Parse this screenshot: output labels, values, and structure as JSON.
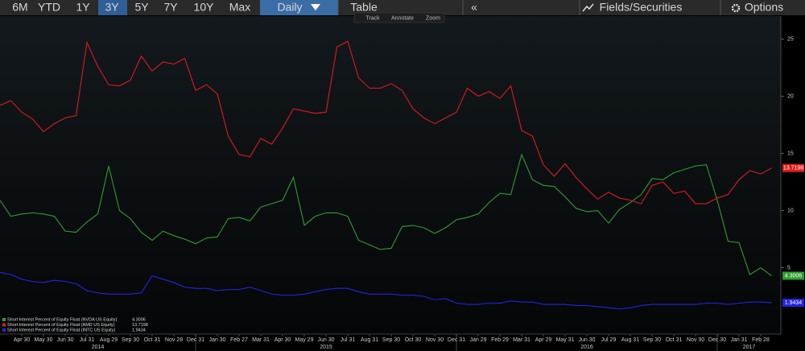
{
  "toolbar": {
    "ranges": [
      "6M",
      "YTD",
      "1Y",
      "3Y",
      "5Y",
      "7Y",
      "10Y",
      "Max"
    ],
    "frequency": "Daily",
    "table": "Table",
    "collapse": "«",
    "fields": "Fields/Securities",
    "options": "Options",
    "tools": [
      "Track",
      "Annotate",
      "Zoom"
    ]
  },
  "chart_data": {
    "type": "line",
    "categories": [
      null,
      null,
      "Apr 30",
      null,
      "May 30",
      null,
      "Jun 30",
      null,
      "Jul 31",
      null,
      "Aug 29",
      null,
      "Sep 30",
      null,
      "Oct 31",
      null,
      "Nov 28",
      null,
      "Dec 31",
      null,
      "Jan 30",
      null,
      "Feb 27",
      null,
      "Mar 31",
      null,
      "Apr 30",
      null,
      "May 29",
      null,
      "Jun 30",
      null,
      "Jul 31",
      null,
      "Aug 31",
      null,
      "Sep 30",
      null,
      "Oct 30",
      null,
      "Nov 30",
      null,
      "Dec 31",
      null,
      "Jan 29",
      null,
      "Feb 29",
      null,
      "Mar 31",
      null,
      "Apr 29",
      null,
      "May 31",
      null,
      "Jun 30",
      null,
      "Jul 29",
      null,
      "Aug 31",
      null,
      "Sep 30",
      null,
      "Oct 31",
      null,
      "Nov 30",
      null,
      "Dec 30",
      null,
      "Jan 31",
      null,
      "Feb 28",
      null
    ],
    "years": [
      "2014",
      "2015",
      "2016",
      "2017"
    ],
    "ylim": [
      -0.8,
      27
    ],
    "yticks": [
      5,
      10,
      15,
      20,
      25
    ],
    "grid": false,
    "legend": "bottom-left",
    "series": [
      {
        "name": "Short Interest Percent of Equity Float (NVDA US Equity)",
        "color": "#2e9e2e",
        "values": [
          10.9,
          9.5,
          9.7,
          9.8,
          9.7,
          9.5,
          8.2,
          8.1,
          9.0,
          9.7,
          13.9,
          10.0,
          9.3,
          8.1,
          7.4,
          8.2,
          7.8,
          7.5,
          7.1,
          7.6,
          7.7,
          9.3,
          9.4,
          9.1,
          10.3,
          10.6,
          10.9,
          12.9,
          8.7,
          9.5,
          9.8,
          9.8,
          9.5,
          7.4,
          7.0,
          6.6,
          6.7,
          8.6,
          8.7,
          8.5,
          8.0,
          8.5,
          9.2,
          9.4,
          9.7,
          10.7,
          11.5,
          11.4,
          14.9,
          12.7,
          12.2,
          12.1,
          11.2,
          10.2,
          9.9,
          10.0,
          8.9,
          10.1,
          10.7,
          11.4,
          12.8,
          12.7,
          13.3,
          13.6,
          13.9,
          14.0,
          10.9,
          7.3,
          7.2,
          4.4,
          5.0,
          4.3006
        ]
      },
      {
        "name": "Short Interest Percent of Equity Float (AMD US Equity)",
        "color": "#e01b1b",
        "values": [
          19.2,
          19.6,
          18.6,
          18.0,
          16.9,
          17.6,
          18.1,
          18.3,
          24.7,
          22.6,
          21.0,
          20.9,
          21.4,
          23.5,
          22.2,
          23.0,
          22.8,
          23.3,
          20.5,
          21.0,
          20.2,
          16.5,
          14.9,
          14.7,
          16.3,
          15.8,
          17.2,
          18.9,
          18.7,
          18.5,
          18.6,
          24.3,
          24.8,
          21.6,
          20.7,
          20.7,
          21.1,
          20.5,
          18.9,
          18.1,
          17.6,
          18.1,
          18.6,
          20.7,
          20.0,
          20.4,
          19.8,
          20.9,
          17.0,
          16.5,
          14.0,
          13.0,
          14.1,
          12.9,
          11.9,
          11.0,
          11.6,
          11.1,
          10.9,
          10.6,
          12.2,
          12.5,
          11.5,
          11.7,
          10.6,
          10.6,
          11.1,
          11.4,
          12.7,
          13.5,
          13.2,
          13.7198
        ]
      },
      {
        "name": "Short Interest Percent of Equity Float (INTC US Equity)",
        "color": "#2424e0",
        "values": [
          4.6,
          4.4,
          4.0,
          3.8,
          3.7,
          3.9,
          3.8,
          3.6,
          3.0,
          2.8,
          2.7,
          2.7,
          2.7,
          2.8,
          4.3,
          4.0,
          3.7,
          3.3,
          3.2,
          3.2,
          3.0,
          3.1,
          3.1,
          3.3,
          3.0,
          2.7,
          2.6,
          2.6,
          2.7,
          2.9,
          3.1,
          3.2,
          3.2,
          2.9,
          2.7,
          2.7,
          2.7,
          2.6,
          2.6,
          2.5,
          2.2,
          2.3,
          1.9,
          1.8,
          1.8,
          1.9,
          1.9,
          2.1,
          2.0,
          2.0,
          1.8,
          1.8,
          1.8,
          1.7,
          1.7,
          1.6,
          1.5,
          1.4,
          1.5,
          1.7,
          1.8,
          1.8,
          1.8,
          1.8,
          1.8,
          1.9,
          1.9,
          1.8,
          1.9,
          2.0,
          2.0,
          1.9434
        ]
      }
    ]
  }
}
